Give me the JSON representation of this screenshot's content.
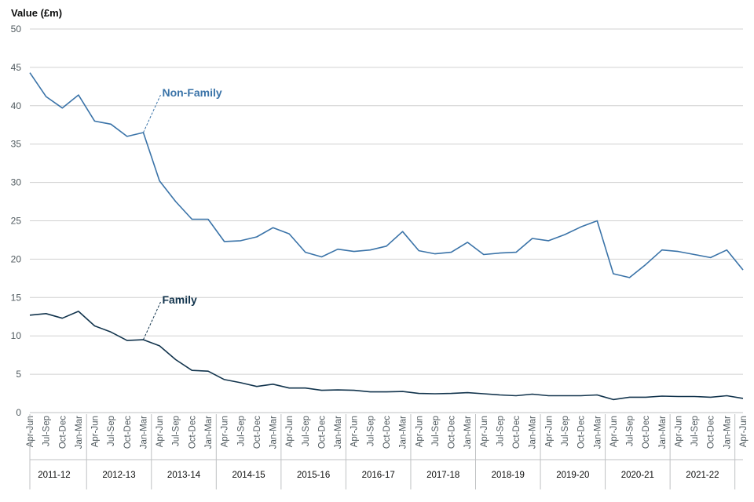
{
  "chart_data": {
    "type": "line",
    "ylabel": "Value (£m)",
    "ylim": [
      0,
      50
    ],
    "yticks": [
      0,
      5,
      10,
      15,
      20,
      25,
      30,
      35,
      40,
      45,
      50
    ],
    "categories": [
      "Apr-Jun",
      "Jul-Sep",
      "Oct-Dec",
      "Jan-Mar",
      "Apr-Jun",
      "Jul-Sep",
      "Oct-Dec",
      "Jan-Mar",
      "Apr-Jun",
      "Jul-Sep",
      "Oct-Dec",
      "Jan-Mar",
      "Apr-Jun",
      "Jul-Sep",
      "Oct-Dec",
      "Jan-Mar",
      "Apr-Jun",
      "Jul-Sep",
      "Oct-Dec",
      "Jan-Mar",
      "Apr-Jun",
      "Jul-Sep",
      "Oct-Dec",
      "Jan-Mar",
      "Apr-Jun",
      "Jul-Sep",
      "Oct-Dec",
      "Jan-Mar",
      "Apr-Jun",
      "Jul-Sep",
      "Oct-Dec",
      "Jan-Mar",
      "Apr-Jun",
      "Jul-Sep",
      "Oct-Dec",
      "Jan-Mar",
      "Apr-Jun",
      "Jul-Sep",
      "Oct-Dec",
      "Jan-Mar",
      "Apr-Jun",
      "Jul-Sep",
      "Oct-Dec",
      "Jan-Mar",
      "Apr-Jun"
    ],
    "years": [
      "2011-12",
      "2012-13",
      "2013-14",
      "2014-15",
      "2015-16",
      "2016-17",
      "2017-18",
      "2018-19",
      "2019-20",
      "2020-21",
      "2021-22"
    ],
    "series": [
      {
        "name": "Non-Family",
        "color": "#3a73a8",
        "values": [
          44.3,
          41.2,
          39.7,
          41.4,
          38.0,
          37.6,
          36.0,
          36.5,
          30.2,
          27.5,
          25.2,
          25.2,
          22.3,
          22.4,
          22.9,
          24.1,
          23.3,
          20.9,
          20.3,
          21.3,
          21.0,
          21.2,
          21.7,
          23.6,
          21.1,
          20.7,
          20.9,
          22.2,
          20.6,
          20.8,
          20.9,
          22.7,
          22.4,
          23.2,
          24.2,
          25.0,
          18.1,
          17.6,
          19.3,
          21.2,
          21.0,
          20.6,
          20.2,
          21.2,
          18.6
        ],
        "label_anchor_index": 7
      },
      {
        "name": "Family",
        "color": "#12344d",
        "values": [
          12.7,
          12.9,
          12.3,
          13.2,
          11.3,
          10.5,
          9.4,
          9.5,
          8.7,
          6.9,
          5.5,
          5.4,
          4.3,
          3.9,
          3.4,
          3.7,
          3.2,
          3.2,
          2.9,
          2.95,
          2.9,
          2.7,
          2.7,
          2.75,
          2.5,
          2.45,
          2.5,
          2.6,
          2.45,
          2.3,
          2.2,
          2.4,
          2.2,
          2.2,
          2.2,
          2.3,
          1.7,
          2.0,
          2.0,
          2.15,
          2.1,
          2.1,
          2.0,
          2.2,
          1.85
        ],
        "label_anchor_index": 7
      }
    ]
  }
}
